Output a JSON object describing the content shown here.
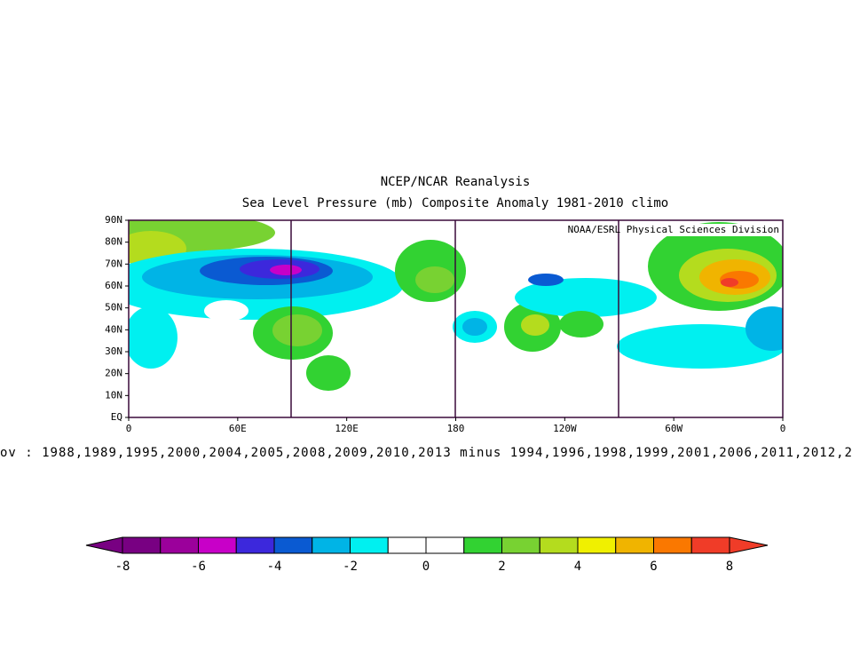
{
  "header": {
    "title": "NCEP/NCAR Reanalysis",
    "subtitle": "Sea Level Pressure (mb) Composite Anomaly 1981-2010 climo"
  },
  "map": {
    "credit": "NOAA/ESRL Physical Sciences Division",
    "y_labels": [
      "90N",
      "80N",
      "70N",
      "60N",
      "50N",
      "40N",
      "30N",
      "20N",
      "10N",
      "EQ"
    ],
    "x_labels": [
      "0",
      "60E",
      "120E",
      "180",
      "120W",
      "60W",
      "0"
    ]
  },
  "footer_text": "ov : 1988,1989,1995,2000,2004,2005,2008,2009,2010,2013 minus 1994,1996,1998,1999,2001,2006,2011,2012,2",
  "colorbar": {
    "colors": [
      "#780082",
      "#9b009b",
      "#c800c8",
      "#3c28dc",
      "#0a5ad2",
      "#00b4e6",
      "#00f0f0",
      "#ffffff",
      "#ffffff",
      "#32d232",
      "#78d232",
      "#b4dc1e",
      "#f0f000",
      "#f0b400",
      "#fa7800",
      "#f03c28"
    ],
    "ticks": [
      -8,
      -6,
      -4,
      -2,
      0,
      2,
      4,
      6,
      8
    ]
  }
}
